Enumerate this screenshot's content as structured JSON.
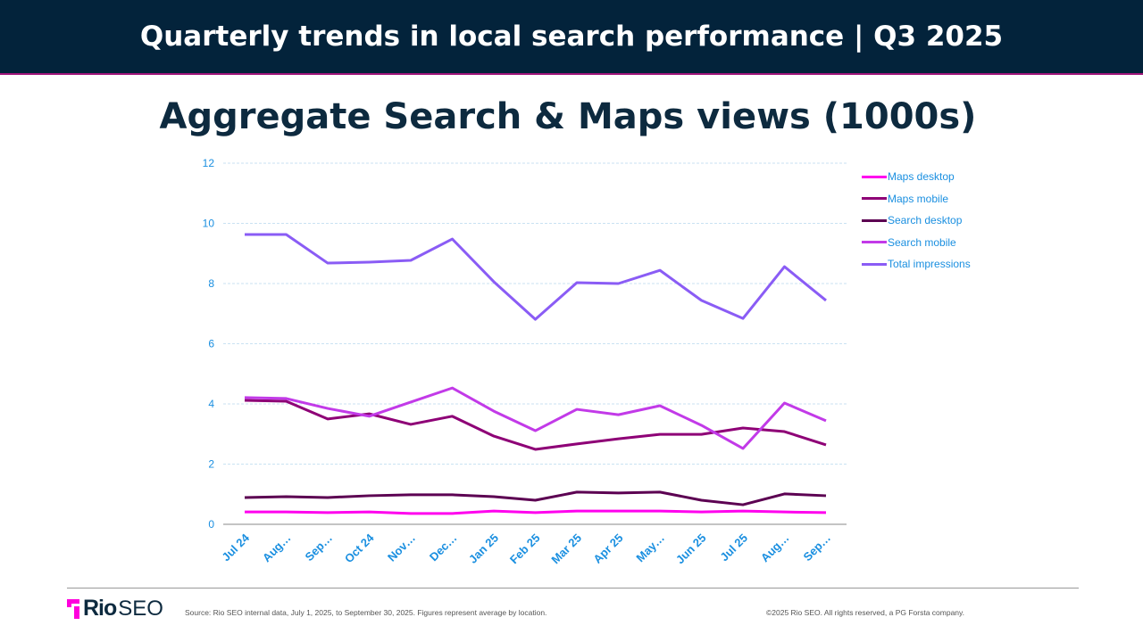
{
  "header": {
    "title": "Quarterly trends in local search performance  |  Q3 2025"
  },
  "chart_data": {
    "type": "line",
    "title": "Aggregate Search & Maps views (1000s)",
    "categories": [
      "Jul 24",
      "Aug…",
      "Sep…",
      "Oct 24",
      "Nov…",
      "Dec…",
      "Jan 25",
      "Feb 25",
      "Mar 25",
      "Apr 25",
      "May…",
      "Jun 25",
      "Jul 25",
      "Aug…",
      "Sep…"
    ],
    "ylim": [
      0,
      12
    ],
    "yticks": [
      0,
      2,
      4,
      6,
      8,
      10,
      12
    ],
    "grid": true,
    "legend_placement": "right",
    "series": [
      {
        "name": "Maps desktop",
        "color": "#ff00ee",
        "values": [
          0.41,
          0.41,
          0.39,
          0.41,
          0.36,
          0.36,
          0.44,
          0.39,
          0.44,
          0.44,
          0.44,
          0.41,
          0.44,
          0.41,
          0.39
        ]
      },
      {
        "name": "Maps mobile",
        "color": "#8e0076",
        "values": [
          4.12,
          4.09,
          3.5,
          3.67,
          3.32,
          3.59,
          2.93,
          2.49,
          2.67,
          2.84,
          2.99,
          2.99,
          3.2,
          3.08,
          2.64
        ]
      },
      {
        "name": "Search desktop",
        "color": "#5c0052",
        "values": [
          0.89,
          0.92,
          0.89,
          0.95,
          0.98,
          0.98,
          0.92,
          0.8,
          1.07,
          1.04,
          1.07,
          0.8,
          0.65,
          1.01,
          0.95
        ]
      },
      {
        "name": "Search mobile",
        "color": "#c23ae8",
        "values": [
          4.21,
          4.18,
          3.85,
          3.59,
          4.06,
          4.53,
          3.76,
          3.11,
          3.82,
          3.64,
          3.94,
          3.29,
          2.52,
          4.03,
          3.44
        ]
      },
      {
        "name": "Total impressions",
        "color": "#8a5cf5",
        "values": [
          9.63,
          9.63,
          8.68,
          8.71,
          8.77,
          9.48,
          8.06,
          6.81,
          8.03,
          8.0,
          8.44,
          7.44,
          6.84,
          8.56,
          7.44
        ]
      }
    ]
  },
  "footer": {
    "logo_text": [
      "Rio",
      "SEO"
    ],
    "source": "Source: Rio SEO internal data, July 1, 2025, to September 30, 2025. Figures represent average by location.",
    "copyright": "©2025 Rio SEO. All rights reserved, a PG Forsta company."
  }
}
